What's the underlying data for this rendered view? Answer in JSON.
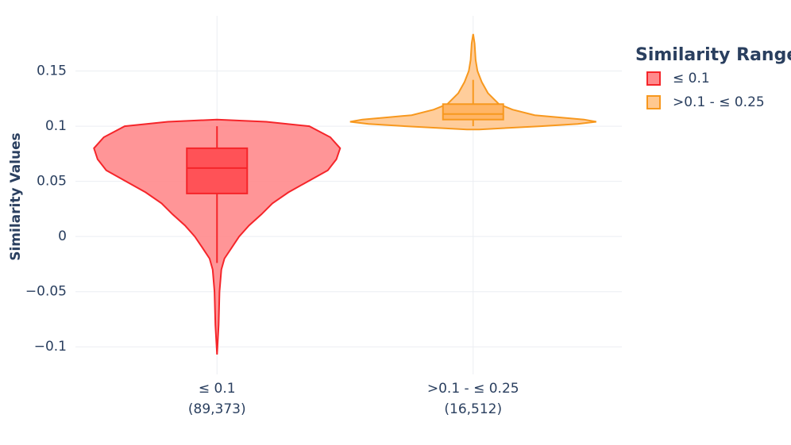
{
  "chart_data": {
    "type": "violin",
    "y_label": "Similarity Values",
    "legend_title": "Similarity Range",
    "categories": [
      "≤ 0.1",
      ">0.1 - ≤ 0.25"
    ],
    "category_counts": [
      "(89,373)",
      "(16,512)"
    ],
    "ylim": [
      -0.125,
      0.2
    ],
    "yticks": [
      {
        "value": -0.1,
        "label": "−0.1"
      },
      {
        "value": -0.05,
        "label": "−0.05"
      },
      0,
      0.05,
      0.1,
      0.15
    ],
    "grid": true,
    "series": [
      {
        "name": "≤ 0.1",
        "line_color": "#f5252a",
        "fill_color": "#ff8a8c",
        "box_color": "#ff5257",
        "y": [
          -0.107,
          -0.08,
          -0.05,
          -0.03,
          -0.02,
          -0.01,
          0,
          0.01,
          0.02,
          0.03,
          0.04,
          0.05,
          0.06,
          0.07,
          0.08,
          0.09,
          0.1,
          0.104,
          0.106
        ],
        "density": [
          0,
          0.013,
          0.02,
          0.035,
          0.06,
          0.12,
          0.18,
          0.26,
          0.36,
          0.45,
          0.58,
          0.74,
          0.9,
          0.97,
          1.0,
          0.92,
          0.75,
          0.4,
          0
        ],
        "q1": 0.039,
        "median": 0.062,
        "q3": 0.08,
        "whisker_low": -0.024,
        "whisker_high": 0.1
      },
      {
        "name": ">0.1 - ≤ 0.25",
        "line_color": "#f7981e",
        "fill_color": "#ffc890",
        "box_color": "#ffb566",
        "y": [
          0.097,
          0.1,
          0.102,
          0.104,
          0.106,
          0.108,
          0.11,
          0.115,
          0.12,
          0.13,
          0.14,
          0.15,
          0.16,
          0.175,
          0.1835
        ],
        "density": [
          0.05,
          0.55,
          0.85,
          1.0,
          0.9,
          0.7,
          0.5,
          0.32,
          0.21,
          0.12,
          0.07,
          0.035,
          0.02,
          0.012,
          0
        ],
        "q1": 0.106,
        "median": 0.111,
        "q3": 0.12,
        "whisker_low": 0.1,
        "whisker_high": 0.142
      }
    ]
  }
}
